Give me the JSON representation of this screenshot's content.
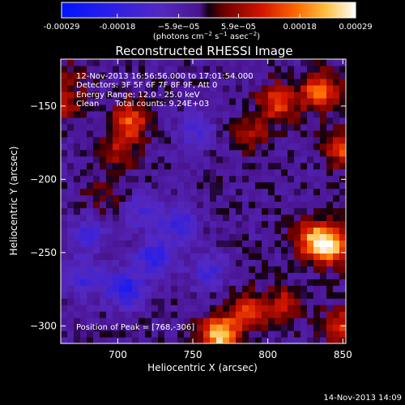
{
  "chart_data": {
    "type": "heatmap",
    "title": "Reconstructed RHESSI Image",
    "xlabel": "Heliocentric X (arcsec)",
    "ylabel": "Heliocentric Y (arcsec)",
    "xlim": [
      662,
      852
    ],
    "ylim": [
      -312,
      -118
    ],
    "x_ticks": [
      700,
      750,
      800,
      850
    ],
    "y_ticks": [
      -150,
      -200,
      -250,
      -300
    ],
    "colorbar": {
      "ticks": [
        {
          "value": -0.00029,
          "label": "-0.00029"
        },
        {
          "value": -0.00018,
          "label": "-0.00018"
        },
        {
          "value": -5.9e-05,
          "label": "−5.9e−05"
        },
        {
          "value": 5.9e-05,
          "label": "5.9e−05"
        },
        {
          "value": 0.00018,
          "label": "0.00018"
        },
        {
          "value": 0.00029,
          "label": "0.00029"
        }
      ],
      "range": [
        -0.00029,
        0.00029
      ],
      "unit_label_text": "(photons cm",
      "unit_sup1": "−2",
      "unit_mid": " s",
      "unit_sup2": "−1",
      "unit_end": " asec",
      "unit_sup3": "−2",
      "unit_close": ")"
    },
    "annotations": {
      "line1": "12-Nov-2013 16:56:56.000 to 17:01:54.000",
      "line2": "Detectors: 3F 5F 6F 7F 8F 9F, Att 0",
      "line3": "Energy Range: 12.0 - 25.0 keV",
      "line4_method": "Clean",
      "line4_counts": "Total counts: 9.24E+03",
      "peak": "Position of Peak = [768,-306]"
    },
    "peak_position": [
      768,
      -306
    ],
    "hotspots": [
      {
        "x": 768,
        "y": -306,
        "value": 0.00029
      },
      {
        "x": 842,
        "y": -245,
        "value": 0.00025
      },
      {
        "x": 830,
        "y": -240,
        "value": 0.0002
      },
      {
        "x": 835,
        "y": -140,
        "value": 0.00021
      },
      {
        "x": 850,
        "y": -178,
        "value": 0.00017
      },
      {
        "x": 807,
        "y": -147,
        "value": 0.00018
      },
      {
        "x": 790,
        "y": -168,
        "value": 9e-05
      },
      {
        "x": 708,
        "y": -160,
        "value": 0.00018
      },
      {
        "x": 700,
        "y": -180,
        "value": 0.0001
      },
      {
        "x": 690,
        "y": -210,
        "value": 5e-05
      },
      {
        "x": 787,
        "y": -290,
        "value": 0.00016
      },
      {
        "x": 812,
        "y": -285,
        "value": 0.00012
      },
      {
        "x": 848,
        "y": -300,
        "value": 0.00014
      },
      {
        "x": 665,
        "y": -150,
        "value": 9e-05
      },
      {
        "x": 668,
        "y": -130,
        "value": 6e-05
      }
    ],
    "coldspots": [
      {
        "x": 705,
        "y": -275,
        "value": -0.00018
      },
      {
        "x": 725,
        "y": -253,
        "value": -0.00016
      },
      {
        "x": 678,
        "y": -268,
        "value": -0.00012
      },
      {
        "x": 742,
        "y": -230,
        "value": -0.00013
      },
      {
        "x": 718,
        "y": -222,
        "value": -0.0001
      },
      {
        "x": 760,
        "y": -262,
        "value": -0.0001
      },
      {
        "x": 752,
        "y": -166,
        "value": -9e-05
      },
      {
        "x": 680,
        "y": -238,
        "value": -0.00011
      }
    ],
    "background_value": -3e-05,
    "grid": false
  },
  "footer": {
    "timestamp": "14-Nov-2013 14:09"
  }
}
